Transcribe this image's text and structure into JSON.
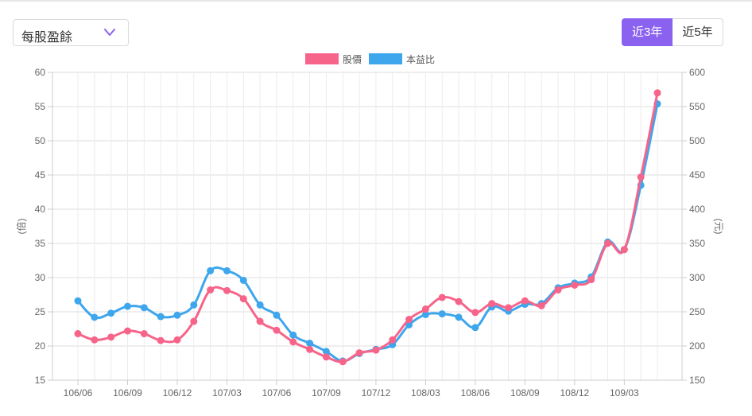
{
  "selector": {
    "value": "每股盈餘",
    "icon": "chevron-down-icon"
  },
  "range_buttons": [
    {
      "label": "近3年",
      "active": true
    },
    {
      "label": "近5年",
      "active": false
    }
  ],
  "colors": {
    "price": "#f7648a",
    "pe": "#3ea6ec",
    "accent": "#8b62f0"
  },
  "chart_data": {
    "type": "line",
    "title": "",
    "legend": {
      "placement": "top-center",
      "entries": [
        "股價",
        "本益比"
      ]
    },
    "x_ticks": [
      "106/06",
      "106/09",
      "106/12",
      "107/03",
      "107/06",
      "107/09",
      "107/12",
      "108/03",
      "108/06",
      "108/09",
      "108/12",
      "109/03"
    ],
    "y_left": {
      "label": "(倍)",
      "min": 15,
      "max": 60,
      "ticks": [
        15,
        20,
        25,
        30,
        35,
        40,
        45,
        50,
        55,
        60
      ]
    },
    "y_right": {
      "label": "(元)",
      "min": 150,
      "max": 600,
      "ticks": [
        150,
        200,
        250,
        300,
        350,
        400,
        450,
        500,
        550,
        600
      ]
    },
    "grid": true,
    "x": [
      "106/06",
      "106/07",
      "106/08",
      "106/09",
      "106/10",
      "106/11",
      "106/12",
      "107/01",
      "107/02",
      "107/03",
      "107/04",
      "107/05",
      "107/06",
      "107/07",
      "107/08",
      "107/09",
      "107/10",
      "107/11",
      "107/12",
      "108/01",
      "108/02",
      "108/03",
      "108/04",
      "108/05",
      "108/06",
      "108/07",
      "108/08",
      "108/09",
      "108/10",
      "108/11",
      "108/12",
      "109/01",
      "109/02",
      "109/03",
      "109/04",
      "109/05"
    ],
    "series": [
      {
        "name": "股價",
        "axis": "left",
        "values": [
          21.8,
          20.9,
          21.3,
          22.2,
          21.8,
          20.8,
          20.9,
          23.6,
          28.2,
          28.1,
          26.9,
          23.6,
          22.3,
          20.6,
          19.5,
          18.4,
          17.7,
          19.0,
          19.4,
          20.9,
          23.9,
          25.4,
          27.1,
          26.5,
          24.9,
          26.2,
          25.6,
          26.6,
          25.9,
          28.2,
          28.9,
          29.7,
          35.0,
          34.1,
          44.7,
          57.0
        ]
      },
      {
        "name": "本益比",
        "axis": "right",
        "values": [
          266,
          242,
          248,
          258,
          256,
          243,
          245,
          260,
          310,
          310,
          296,
          260,
          245,
          216,
          204,
          192,
          178,
          189,
          195,
          202,
          231,
          246,
          247,
          242,
          227,
          257,
          251,
          261,
          262,
          285,
          292,
          301,
          352,
          341,
          435,
          554
        ]
      }
    ]
  }
}
